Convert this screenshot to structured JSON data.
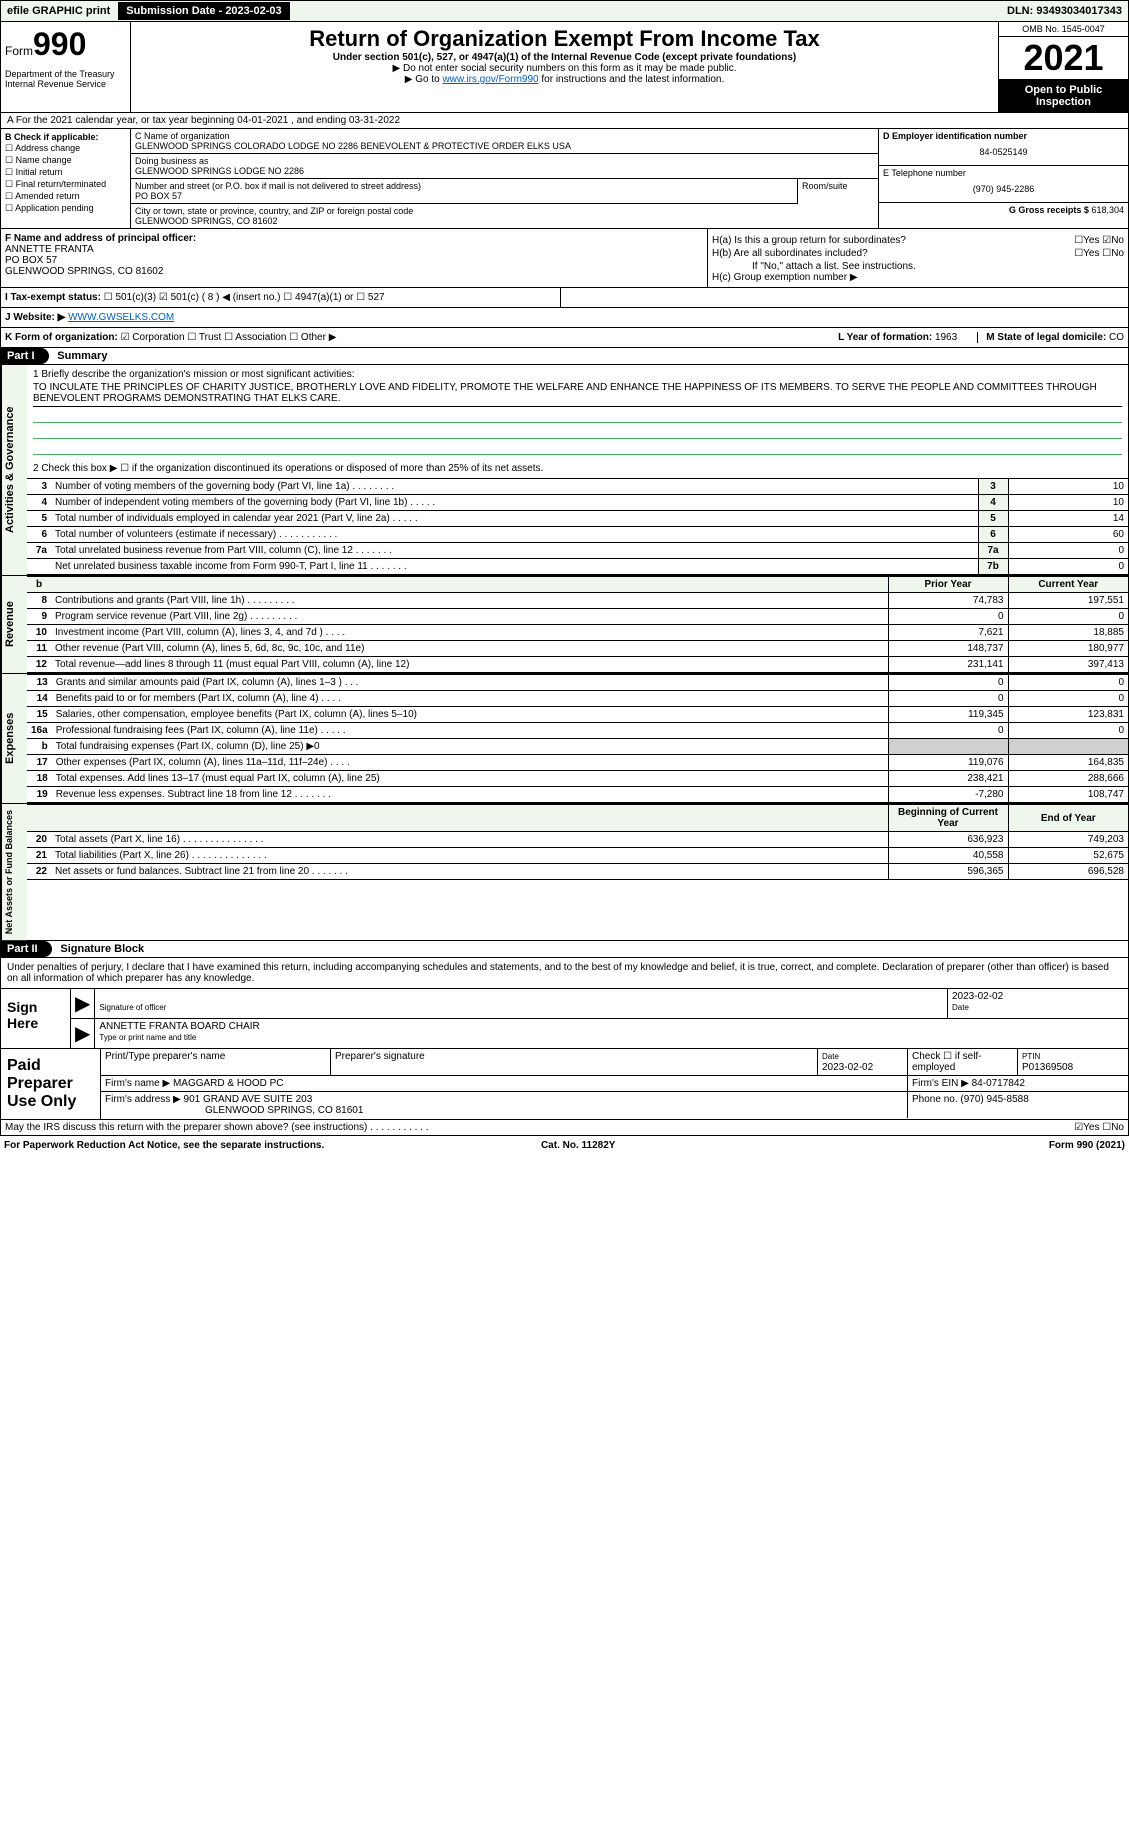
{
  "top": {
    "efile": "efile GRAPHIC print",
    "subdate_lbl": "Submission Date - 2023-02-03",
    "dln": "DLN: 93493034017343"
  },
  "header": {
    "form": "Form",
    "formnum": "990",
    "title": "Return of Organization Exempt From Income Tax",
    "sub1": "Under section 501(c), 527, or 4947(a)(1) of the Internal Revenue Code (except private foundations)",
    "sub2": "▶ Do not enter social security numbers on this form as it may be made public.",
    "sub3": "▶ Go to ",
    "sub3link": "www.irs.gov/Form990",
    "sub3b": " for instructions and the latest information.",
    "dept": "Department of the Treasury\nInternal Revenue Service",
    "omb": "OMB No. 1545-0047",
    "year": "2021",
    "open": "Open to Public Inspection"
  },
  "rowA": "A For the 2021 calendar year, or tax year beginning 04-01-2021   , and ending 03-31-2022",
  "colB": {
    "hdr": "B Check if applicable:",
    "items": [
      "Address change",
      "Name change",
      "Initial return",
      "Final return/terminated",
      "Amended return",
      "Application pending"
    ]
  },
  "colC": {
    "name_lbl": "C Name of organization",
    "name": "GLENWOOD SPRINGS COLORADO LODGE NO 2286 BENEVOLENT & PROTECTIVE ORDER ELKS USA",
    "dba_lbl": "Doing business as",
    "dba": "GLENWOOD SPRINGS LODGE NO 2286",
    "addr_lbl": "Number and street (or P.O. box if mail is not delivered to street address)",
    "addr": "PO BOX 57",
    "room_lbl": "Room/suite",
    "city_lbl": "City or town, state or province, country, and ZIP or foreign postal code",
    "city": "GLENWOOD SPRINGS, CO  81602"
  },
  "colD": {
    "ein_lbl": "D Employer identification number",
    "ein": "84-0525149",
    "phone_lbl": "E Telephone number",
    "phone": "(970) 945-2286",
    "gross_lbl": "G Gross receipts $",
    "gross": "618,304"
  },
  "f": {
    "lbl": "F Name and address of principal officer:",
    "name": "ANNETTE FRANTA",
    "addr1": "PO BOX 57",
    "addr2": "GLENWOOD SPRINGS, CO  81602"
  },
  "h": {
    "ha": "H(a)  Is this a group return for subordinates?",
    "ha_ans": "☐Yes ☑No",
    "hb": "H(b)  Are all subordinates included?",
    "hb_ans": "☐Yes ☐No",
    "hb2": "If \"No,\" attach a list. See instructions.",
    "hc": "H(c)  Group exemption number ▶"
  },
  "i": {
    "lbl": "I Tax-exempt status:",
    "opts": "☐ 501(c)(3)   ☑ 501(c) ( 8 ) ◀ (insert no.)   ☐ 4947(a)(1) or  ☐ 527"
  },
  "j": {
    "lbl": "J Website: ▶",
    "val": "WWW.GWSELKS.COM"
  },
  "k": {
    "lbl": "K Form of organization:",
    "opts": "☑ Corporation ☐ Trust ☐ Association ☐ Other ▶",
    "l_lbl": "L Year of formation:",
    "l_val": "1963",
    "m_lbl": "M State of legal domicile:",
    "m_val": "CO"
  },
  "part1": {
    "label": "Part I",
    "title": "Summary",
    "line1_lbl": "1 Briefly describe the organization's mission or most significant activities:",
    "line1_val": "TO INCULATE THE PRINCIPLES OF CHARITY JUSTICE, BROTHERLY LOVE AND FIDELITY, PROMOTE THE WELFARE AND ENHANCE THE HAPPINESS OF ITS MEMBERS. TO SERVE THE PEOPLE AND COMMITTEES THROUGH BENEVOLENT PROGRAMS DEMONSTRATING THAT ELKS CARE.",
    "line2": "2   Check this box ▶ ☐ if the organization discontinued its operations or disposed of more than 25% of its net assets.",
    "gov_rows": [
      {
        "n": "3",
        "d": "Number of voting members of the governing body (Part VI, line 1a)  .   .   .   .   .   .   .   .",
        "b": "3",
        "v": "10"
      },
      {
        "n": "4",
        "d": "Number of independent voting members of the governing body (Part VI, line 1b)  .   .   .   .   .",
        "b": "4",
        "v": "10"
      },
      {
        "n": "5",
        "d": "Total number of individuals employed in calendar year 2021 (Part V, line 2a)  .   .   .   .   .",
        "b": "5",
        "v": "14"
      },
      {
        "n": "6",
        "d": "Total number of volunteers (estimate if necessary)  .   .   .   .   .   .   .   .   .   .   .",
        "b": "6",
        "v": "60"
      },
      {
        "n": "7a",
        "d": "Total unrelated business revenue from Part VIII, column (C), line 12  .   .   .   .   .   .   .",
        "b": "7a",
        "v": "0"
      },
      {
        "n": "",
        "d": "Net unrelated business taxable income from Form 990-T, Part I, line 11  .   .   .   .   .   .   .",
        "b": "7b",
        "v": "0"
      }
    ],
    "rev_hdr": {
      "py": "Prior Year",
      "cy": "Current Year"
    },
    "rev_rows": [
      {
        "n": "8",
        "d": "Contributions and grants (Part VIII, line 1h)  .   .   .   .   .   .   .   .   .",
        "py": "74,783",
        "cy": "197,551"
      },
      {
        "n": "9",
        "d": "Program service revenue (Part VIII, line 2g)  .   .   .   .   .   .   .   .   .",
        "py": "0",
        "cy": "0"
      },
      {
        "n": "10",
        "d": "Investment income (Part VIII, column (A), lines 3, 4, and 7d )  .   .   .   .",
        "py": "7,621",
        "cy": "18,885"
      },
      {
        "n": "11",
        "d": "Other revenue (Part VIII, column (A), lines 5, 6d, 8c, 9c, 10c, and 11e)",
        "py": "148,737",
        "cy": "180,977"
      },
      {
        "n": "12",
        "d": "Total revenue—add lines 8 through 11 (must equal Part VIII, column (A), line 12)",
        "py": "231,141",
        "cy": "397,413"
      }
    ],
    "exp_rows": [
      {
        "n": "13",
        "d": "Grants and similar amounts paid (Part IX, column (A), lines 1–3 )  .   .   .",
        "py": "0",
        "cy": "0"
      },
      {
        "n": "14",
        "d": "Benefits paid to or for members (Part IX, column (A), line 4)  .   .   .   .",
        "py": "0",
        "cy": "0"
      },
      {
        "n": "15",
        "d": "Salaries, other compensation, employee benefits (Part IX, column (A), lines 5–10)",
        "py": "119,345",
        "cy": "123,831"
      },
      {
        "n": "16a",
        "d": "Professional fundraising fees (Part IX, column (A), line 11e)  .   .   .   .   .",
        "py": "0",
        "cy": "0"
      },
      {
        "n": "b",
        "d": "Total fundraising expenses (Part IX, column (D), line 25) ▶0",
        "py": "",
        "cy": "",
        "shade": true
      },
      {
        "n": "17",
        "d": "Other expenses (Part IX, column (A), lines 11a–11d, 11f–24e)  .   .   .   .",
        "py": "119,076",
        "cy": "164,835"
      },
      {
        "n": "18",
        "d": "Total expenses. Add lines 13–17 (must equal Part IX, column (A), line 25)",
        "py": "238,421",
        "cy": "288,666"
      },
      {
        "n": "19",
        "d": "Revenue less expenses. Subtract line 18 from line 12  .   .   .   .   .   .   .",
        "py": "-7,280",
        "cy": "108,747"
      }
    ],
    "na_hdr": {
      "py": "Beginning of Current Year",
      "cy": "End of Year"
    },
    "na_rows": [
      {
        "n": "20",
        "d": "Total assets (Part X, line 16)  .   .   .   .   .   .   .   .   .   .   .   .   .   .   .",
        "py": "636,923",
        "cy": "749,203"
      },
      {
        "n": "21",
        "d": "Total liabilities (Part X, line 26)  .   .   .   .   .   .   .   .   .   .   .   .   .   .",
        "py": "40,558",
        "cy": "52,675"
      },
      {
        "n": "22",
        "d": "Net assets or fund balances. Subtract line 21 from line 20  .   .   .   .   .   .   .",
        "py": "596,365",
        "cy": "696,528"
      }
    ],
    "sidebars": {
      "gov": "Activities & Governance",
      "rev": "Revenue",
      "exp": "Expenses",
      "na": "Net Assets or Fund Balances",
      "nab": "b"
    }
  },
  "part2": {
    "label": "Part II",
    "title": "Signature Block"
  },
  "sig": {
    "decl": "Under penalties of perjury, I declare that I have examined this return, including accompanying schedules and statements, and to the best of my knowledge and belief, it is true, correct, and complete. Declaration of preparer (other than officer) is based on all information of which preparer has any knowledge.",
    "sign": "Sign Here",
    "sig_lbl": "Signature of officer",
    "date": "2023-02-02",
    "date_lbl": "Date",
    "name": "ANNETTE FRANTA  BOARD CHAIR",
    "name_lbl": "Type or print name and title"
  },
  "paid": {
    "label": "Paid Preparer Use Only",
    "r1": {
      "a": "Print/Type preparer's name",
      "b": "Preparer's signature",
      "c_lbl": "Date",
      "c": "2023-02-02",
      "d": "Check ☐ if self-employed",
      "e_lbl": "PTIN",
      "e": "P01369508"
    },
    "r2": {
      "a_lbl": "Firm's name    ▶",
      "a": "MAGGARD & HOOD PC",
      "b_lbl": "Firm's EIN ▶",
      "b": "84-0717842"
    },
    "r3": {
      "a_lbl": "Firm's address ▶",
      "a": "901 GRAND AVE SUITE 203",
      "a2": "GLENWOOD SPRINGS, CO  81601",
      "b_lbl": "Phone no.",
      "b": "(970) 945-8588"
    }
  },
  "footer": {
    "q": "May the IRS discuss this return with the preparer shown above? (see instructions)  .   .   .   .   .   .   .   .   .   .   .",
    "ans": "☑Yes  ☐No"
  },
  "bottom": {
    "l": "For Paperwork Reduction Act Notice, see the separate instructions.",
    "c": "Cat. No. 11282Y",
    "r": "Form 990 (2021)"
  }
}
